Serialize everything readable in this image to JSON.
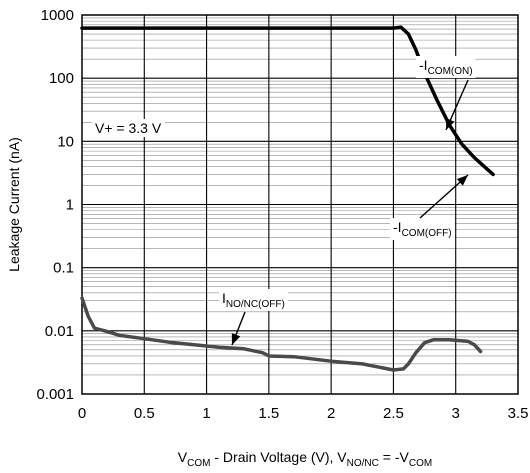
{
  "chart_data": {
    "type": "line",
    "xlabel": {
      "main": "V",
      "sub1": "COM",
      "mid": " - Drain Voltage (V), V",
      "sub2": "NO/NC",
      "end": " = -V",
      "sub3": "COM"
    },
    "ylabel": "Leakage Current (nA)",
    "xlim": [
      0,
      3.5
    ],
    "ylim": [
      0.001,
      1000
    ],
    "yscale": "log",
    "grid": true,
    "x_ticks": [
      "0",
      "0.5",
      "1",
      "1.5",
      "2",
      "2.5",
      "3",
      "3.5"
    ],
    "y_ticks": [
      "0.001",
      "0.01",
      "0.1",
      "1",
      "10",
      "100",
      "1000"
    ],
    "annotations": {
      "vplus": "V+ = 3.3 V",
      "icom_on": {
        "prefix": "-I",
        "sub": "COM(ON)"
      },
      "icom_off": {
        "prefix": "-I",
        "sub": "COM(OFF)"
      },
      "ino_off": {
        "prefix": "I",
        "sub": "NO/NC(OFF)"
      }
    },
    "series": [
      {
        "id": "icom",
        "color": "#000000",
        "points": [
          [
            0,
            620
          ],
          [
            2.5,
            620
          ],
          [
            2.56,
            640
          ],
          [
            2.62,
            500
          ],
          [
            2.68,
            280
          ],
          [
            2.75,
            120
          ],
          [
            2.85,
            45
          ],
          [
            2.95,
            18
          ],
          [
            3.05,
            9
          ],
          [
            3.15,
            5.5
          ],
          [
            3.3,
            3
          ]
        ]
      },
      {
        "id": "ino",
        "color": "#4a4a4a",
        "points": [
          [
            0,
            0.033
          ],
          [
            0.05,
            0.017
          ],
          [
            0.1,
            0.011
          ],
          [
            0.2,
            0.0098
          ],
          [
            0.3,
            0.0085
          ],
          [
            0.5,
            0.0075
          ],
          [
            0.7,
            0.0066
          ],
          [
            0.9,
            0.006
          ],
          [
            1.1,
            0.0055
          ],
          [
            1.3,
            0.0052
          ],
          [
            1.45,
            0.0045
          ],
          [
            1.5,
            0.004
          ],
          [
            1.7,
            0.0039
          ],
          [
            2.0,
            0.0033
          ],
          [
            2.25,
            0.003
          ],
          [
            2.5,
            0.0024
          ],
          [
            2.58,
            0.0025
          ],
          [
            2.62,
            0.003
          ],
          [
            2.68,
            0.0045
          ],
          [
            2.75,
            0.0065
          ],
          [
            2.82,
            0.0072
          ],
          [
            2.95,
            0.0072
          ],
          [
            3.1,
            0.0068
          ],
          [
            3.15,
            0.006
          ],
          [
            3.2,
            0.0047
          ]
        ]
      }
    ]
  }
}
